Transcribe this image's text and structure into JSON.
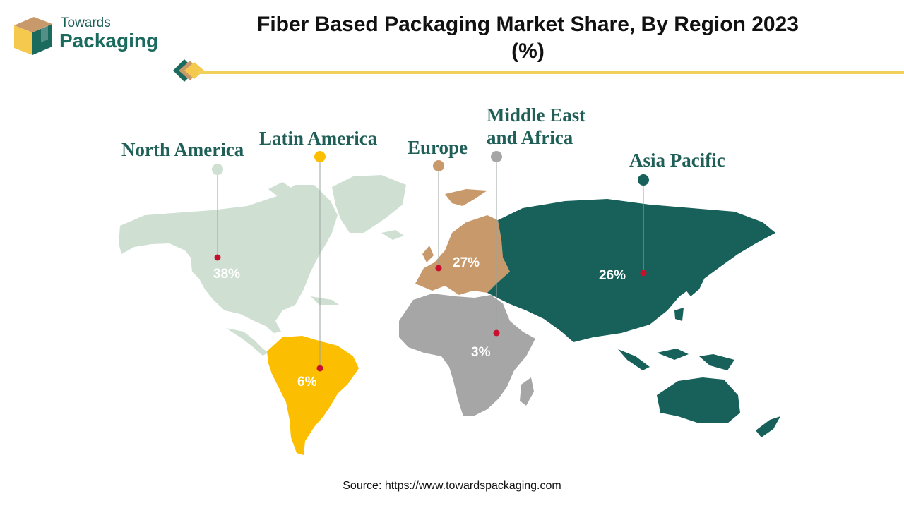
{
  "logo": {
    "line1": "Towards",
    "line2": "Packaging"
  },
  "source": "Source: https://www.towardspackaging.com",
  "colors": {
    "north_america": "#cfe0d3",
    "latin_america": "#fbbe00",
    "europe": "#c8996b",
    "middle_east_africa": "#a6a6a6",
    "asia_pacific": "#17615a",
    "label_text": "#1f5f57",
    "accent_line": "#f2d15b",
    "marker": "#c8102e"
  },
  "chart_data": {
    "type": "map",
    "title": "Fiber Based Packaging Market Share, By Region 2023 (%)",
    "unit": "%",
    "categories": [
      "North America",
      "Latin America",
      "Europe",
      "Middle East and Africa",
      "Asia Pacific"
    ],
    "values": [
      38,
      6,
      27,
      3,
      26
    ],
    "value_labels": [
      "38%",
      "6%",
      "27%",
      "3%",
      "26%"
    ]
  }
}
